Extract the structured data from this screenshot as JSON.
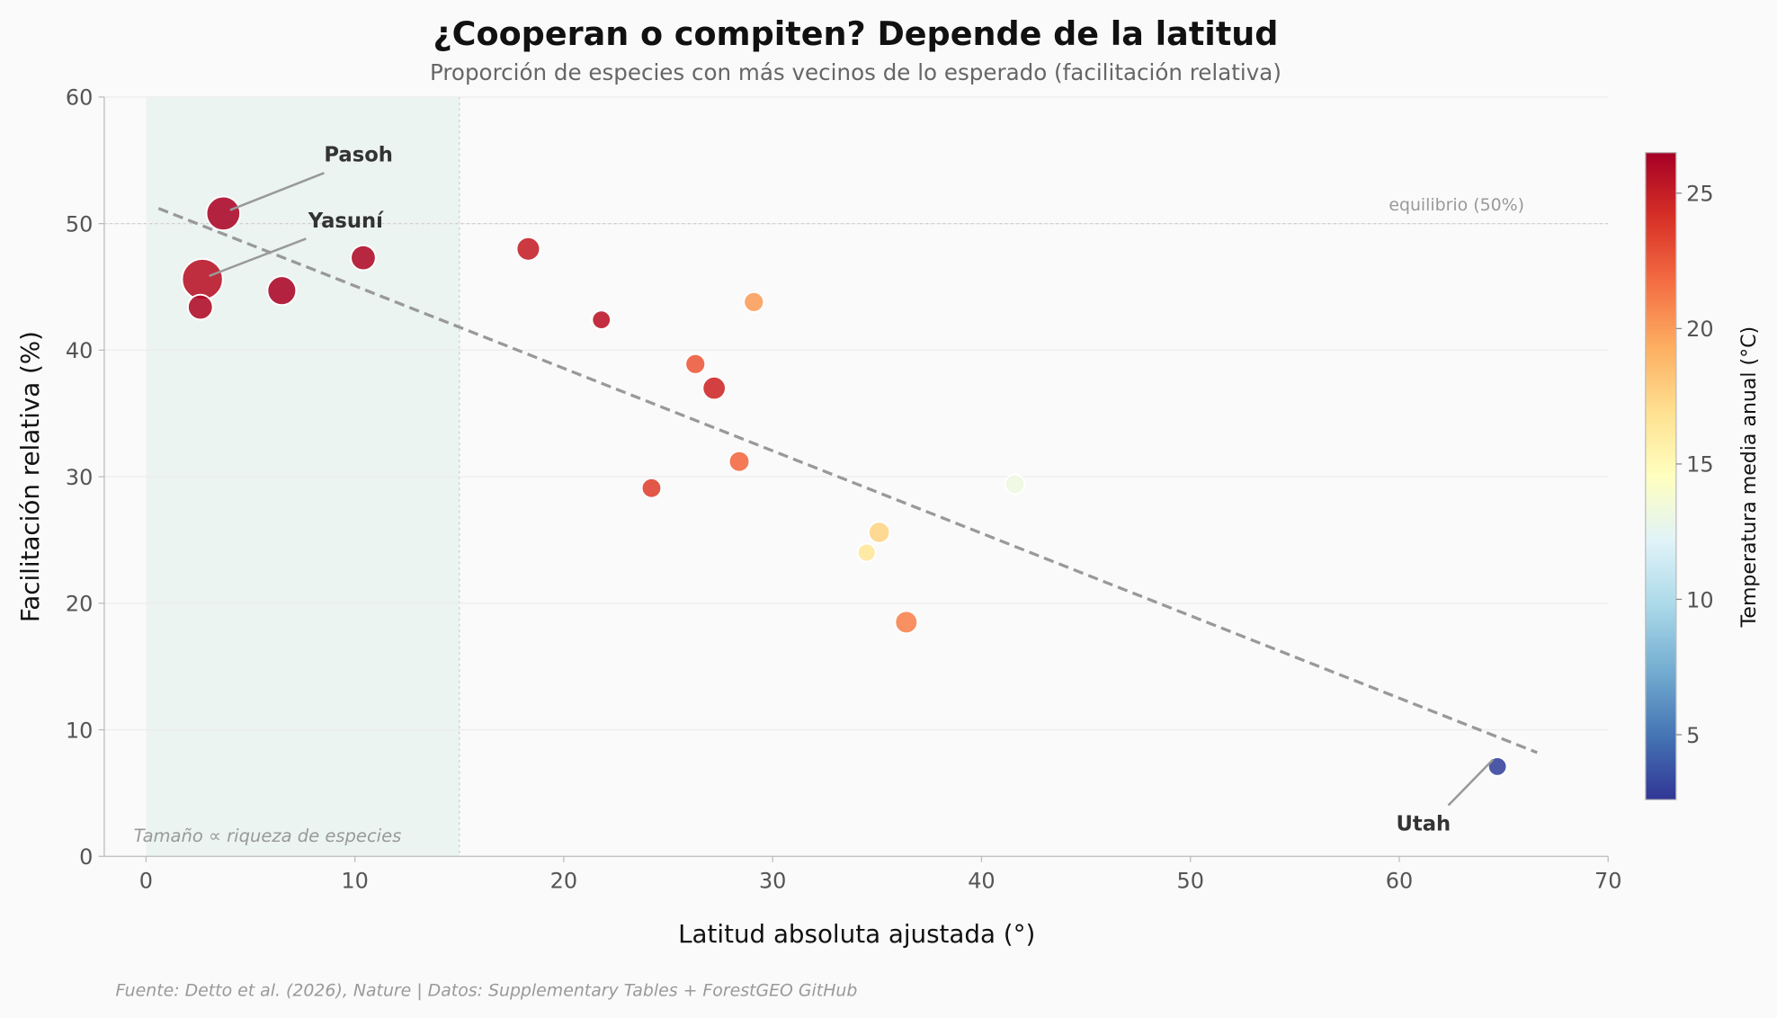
{
  "chart_data": {
    "type": "scatter",
    "title": "¿Cooperan o compiten? Depende de la latitud",
    "subtitle": "Proporción de especies con más vecinos de lo esperado (facilitación relativa)",
    "xlabel": "Latitud absoluta ajustada (°)",
    "ylabel": "Facilitación relativa (%)",
    "xlim": [
      -2,
      70
    ],
    "ylim": [
      0,
      60
    ],
    "xticks": [
      0,
      10,
      20,
      30,
      40,
      50,
      60,
      70
    ],
    "yticks": [
      0,
      10,
      20,
      30,
      40,
      50,
      60
    ],
    "grid": "horizontal",
    "colorbar": {
      "label": "Temperatura media anual (°C)",
      "range": [
        2.6,
        26.5
      ],
      "ticks": [
        5,
        10,
        15,
        20,
        25
      ],
      "colormap": "RdYlBu_r"
    },
    "size_note": "Tamaño ∝ riqueza de especies",
    "reference_line": {
      "y": 50,
      "label": "equilibrio (50%)"
    },
    "tropical_band": {
      "x": [
        0,
        15
      ],
      "color": "#e3f1ea"
    },
    "trend": {
      "x": [
        0.6,
        66.6
      ],
      "y": [
        51.2,
        8.2
      ],
      "style": "dashed",
      "color": "#999999"
    },
    "points": [
      {
        "x": 3.7,
        "y": 50.8,
        "temp": 26.2,
        "richness_rel": 0.78,
        "label": "Pasoh"
      },
      {
        "x": 2.7,
        "y": 45.6,
        "temp": 25.6,
        "richness_rel": 1.0,
        "label": "Yasuní"
      },
      {
        "x": 2.6,
        "y": 43.4,
        "temp": 26.0,
        "richness_rel": 0.5
      },
      {
        "x": 6.5,
        "y": 44.7,
        "temp": 26.2,
        "richness_rel": 0.62
      },
      {
        "x": 10.4,
        "y": 47.3,
        "temp": 26.0,
        "richness_rel": 0.5
      },
      {
        "x": 18.3,
        "y": 48.0,
        "temp": 25.0,
        "richness_rel": 0.45
      },
      {
        "x": 21.8,
        "y": 42.4,
        "temp": 25.6,
        "richness_rel": 0.3
      },
      {
        "x": 26.3,
        "y": 38.9,
        "temp": 22.5,
        "richness_rel": 0.34
      },
      {
        "x": 27.2,
        "y": 37.0,
        "temp": 24.6,
        "richness_rel": 0.44
      },
      {
        "x": 29.1,
        "y": 43.8,
        "temp": 20.0,
        "richness_rel": 0.34
      },
      {
        "x": 24.2,
        "y": 29.1,
        "temp": 23.5,
        "richness_rel": 0.33
      },
      {
        "x": 28.4,
        "y": 31.2,
        "temp": 22.0,
        "richness_rel": 0.36
      },
      {
        "x": 41.6,
        "y": 29.4,
        "temp": 13.2,
        "richness_rel": 0.33
      },
      {
        "x": 35.1,
        "y": 25.6,
        "temp": 17.5,
        "richness_rel": 0.38
      },
      {
        "x": 34.5,
        "y": 24.0,
        "temp": 16.5,
        "richness_rel": 0.28
      },
      {
        "x": 36.4,
        "y": 18.5,
        "temp": 21.0,
        "richness_rel": 0.42
      },
      {
        "x": 64.7,
        "y": 7.1,
        "temp": 3.0,
        "richness_rel": 0.3,
        "label": "Utah"
      }
    ]
  },
  "footer": "Fuente: Detto et al. (2026), Nature | Datos: Supplementary Tables + ForestGEO GitHub"
}
